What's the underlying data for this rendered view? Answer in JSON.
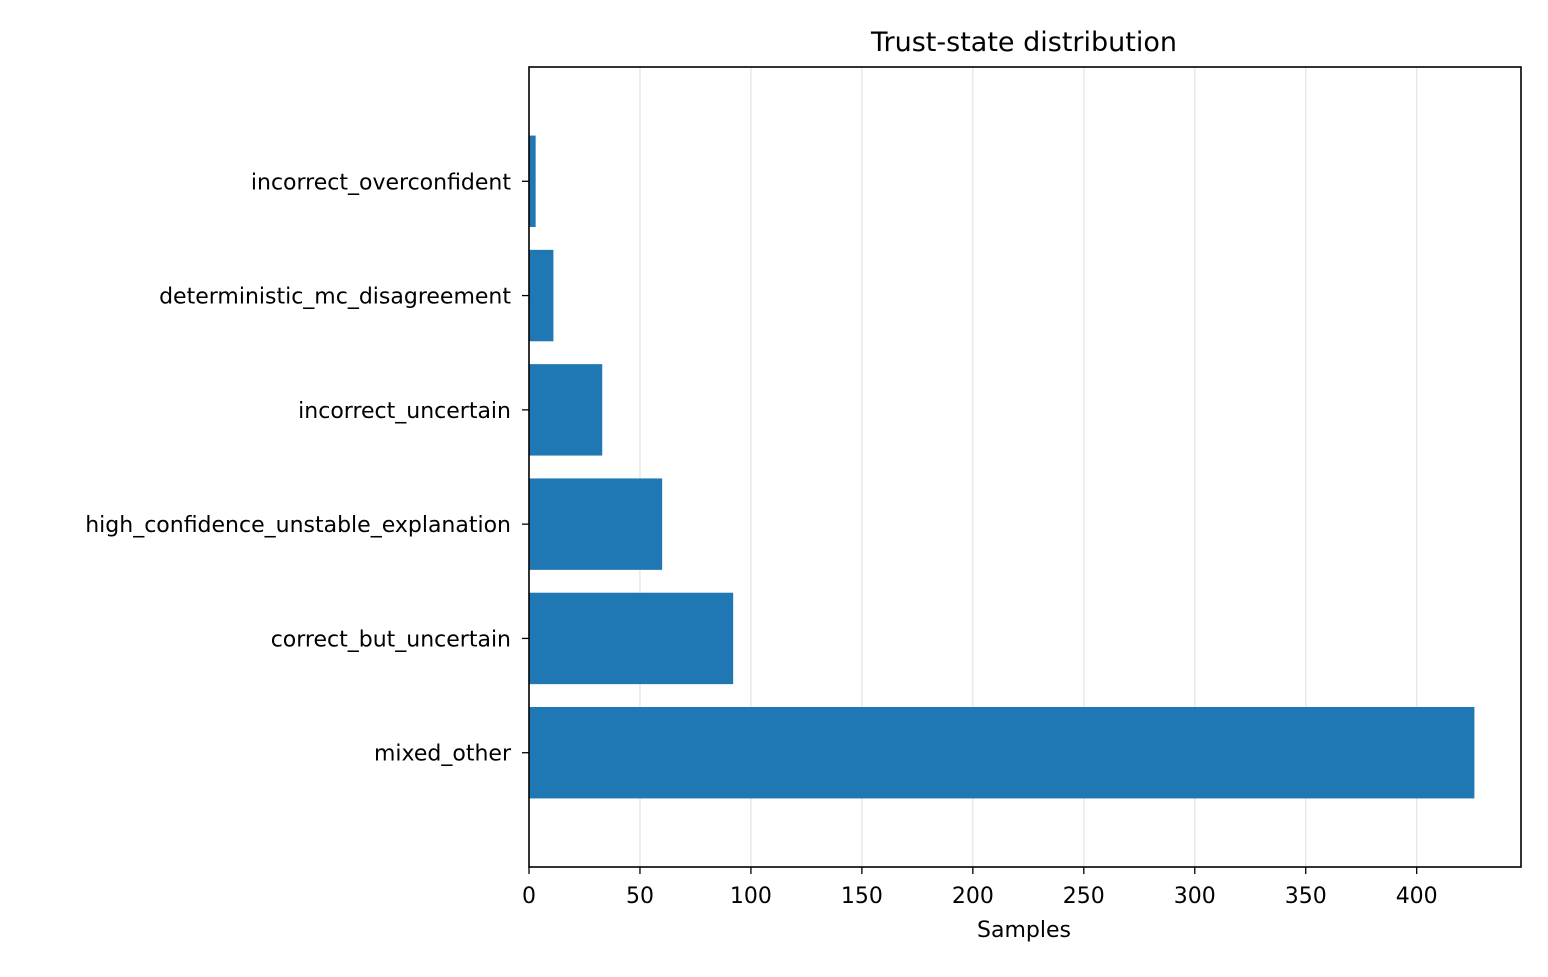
{
  "chart_data": {
    "type": "bar",
    "orientation": "horizontal",
    "title": "Trust-state distribution",
    "xlabel": "Samples",
    "ylabel": "",
    "categories": [
      "incorrect_overconfident",
      "deterministic_mc_disagreement",
      "incorrect_uncertain",
      "high_confidence_unstable_explanation",
      "correct_but_uncertain",
      "mixed_other"
    ],
    "values": [
      3,
      11,
      33,
      60,
      92,
      426
    ],
    "xlim": [
      0,
      447
    ],
    "xticks": [
      0,
      50,
      100,
      150,
      200,
      250,
      300,
      350,
      400
    ],
    "grid": "x",
    "bar_color": "#1f77b4",
    "grid_color": "#e5e5e5"
  }
}
